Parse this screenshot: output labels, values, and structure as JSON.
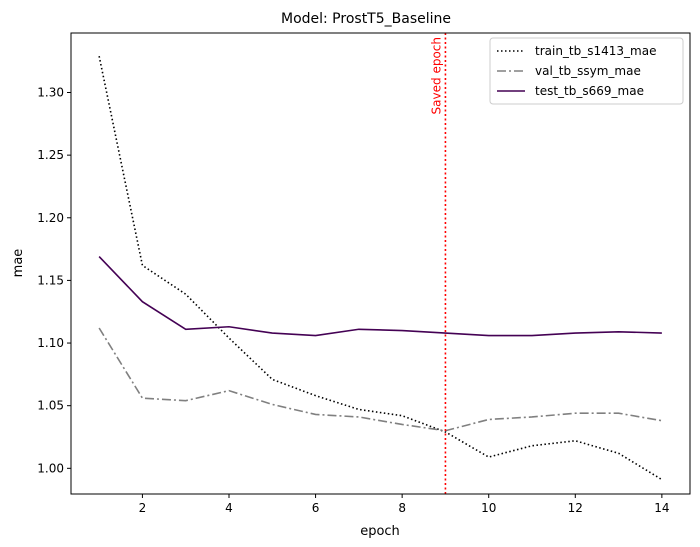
{
  "chart_data": {
    "type": "line",
    "title": "Model: ProstT5_Baseline",
    "xlabel": "epoch",
    "ylabel": "mae",
    "xlim": [
      0.35,
      14.65
    ],
    "ylim": [
      0.9795,
      1.3475
    ],
    "x_ticks": [
      2,
      4,
      6,
      8,
      10,
      12,
      14
    ],
    "y_ticks": [
      1.0,
      1.05,
      1.1,
      1.15,
      1.2,
      1.25,
      1.3
    ],
    "x_tick_labels": [
      "2",
      "4",
      "6",
      "8",
      "10",
      "12",
      "14"
    ],
    "y_tick_labels": [
      "1.00",
      "1.05",
      "1.10",
      "1.15",
      "1.20",
      "1.25",
      "1.30"
    ],
    "grid": false,
    "legend_position": "top-right",
    "x": [
      1,
      2,
      3,
      4,
      5,
      6,
      7,
      8,
      9,
      10,
      11,
      12,
      13,
      14
    ],
    "series": [
      {
        "name": "train_tb_s1413_mae",
        "color": "#000000",
        "dash": "dotted",
        "values": [
          1.329,
          1.162,
          1.139,
          1.104,
          1.071,
          1.058,
          1.047,
          1.042,
          1.029,
          1.009,
          1.018,
          1.022,
          1.012,
          0.991
        ]
      },
      {
        "name": "val_tb_ssym_mae",
        "color": "#808080",
        "dash": "dashdot",
        "values": [
          1.112,
          1.056,
          1.054,
          1.062,
          1.051,
          1.043,
          1.041,
          1.035,
          1.03,
          1.039,
          1.041,
          1.044,
          1.044,
          1.038
        ]
      },
      {
        "name": "test_tb_s669_mae",
        "color": "#440154",
        "dash": "solid",
        "values": [
          1.169,
          1.133,
          1.111,
          1.113,
          1.108,
          1.106,
          1.111,
          1.11,
          1.108,
          1.106,
          1.106,
          1.108,
          1.109,
          1.108
        ]
      }
    ],
    "annotations": [
      {
        "type": "vline",
        "x": 9,
        "label": "Saved epoch",
        "color": "#ff0000"
      }
    ]
  }
}
